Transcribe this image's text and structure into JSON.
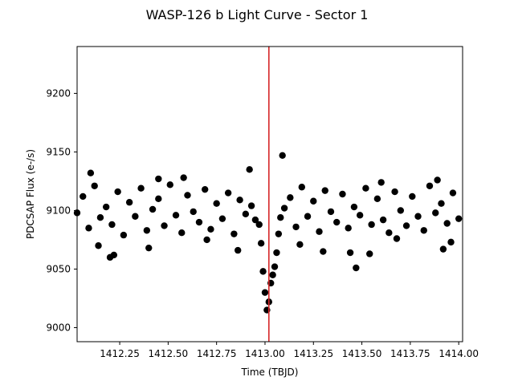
{
  "chart_data": {
    "type": "scatter",
    "title": "WASP-126 b Light Curve - Sector 1",
    "xlabel": "Time (TBJD)",
    "ylabel": "PDCSAP Flux (e-/s)",
    "xlim": [
      1412.03,
      1414.02
    ],
    "ylim": [
      8988,
      9240
    ],
    "x_ticks": [
      1412.25,
      1412.5,
      1412.75,
      1413.0,
      1413.25,
      1413.5,
      1413.75,
      1414.0
    ],
    "x_tick_labels": [
      "1412.25",
      "1412.50",
      "1412.75",
      "1413.00",
      "1413.25",
      "1413.50",
      "1413.75",
      "1414.00"
    ],
    "y_ticks": [
      9000,
      9050,
      9100,
      9150,
      9200
    ],
    "y_tick_labels": [
      "9000",
      "9050",
      "9100",
      "9150",
      "9200"
    ],
    "grid": false,
    "marker_color": "#000000",
    "vline": {
      "x": 1413.02,
      "color": "#d62728"
    },
    "points": {
      "x": [
        1412.03,
        1412.06,
        1412.09,
        1412.12,
        1412.15,
        1412.18,
        1412.21,
        1412.24,
        1412.27,
        1412.3,
        1412.33,
        1412.36,
        1412.39,
        1412.42,
        1412.45,
        1412.48,
        1412.51,
        1412.54,
        1412.57,
        1412.6,
        1412.63,
        1412.66,
        1412.69,
        1412.72,
        1412.75,
        1412.78,
        1412.81,
        1412.84,
        1412.87,
        1412.9,
        1412.93,
        1412.95,
        1412.97,
        1412.98,
        1412.99,
        1413.0,
        1413.01,
        1413.02,
        1413.03,
        1413.04,
        1413.05,
        1413.06,
        1413.07,
        1413.08,
        1413.1,
        1413.13,
        1413.16,
        1413.19,
        1413.22,
        1413.25,
        1413.28,
        1413.31,
        1413.34,
        1413.37,
        1413.4,
        1413.43,
        1413.46,
        1413.49,
        1413.52,
        1413.55,
        1413.58,
        1413.61,
        1413.64,
        1413.67,
        1413.7,
        1413.73,
        1413.76,
        1413.79,
        1413.82,
        1413.85,
        1413.88,
        1413.91,
        1413.94,
        1413.97,
        1414.0,
        1412.1,
        1412.22,
        1412.4,
        1412.58,
        1412.86,
        1413.09,
        1413.3,
        1413.47,
        1413.54,
        1413.89,
        1413.96,
        1412.14,
        1412.45,
        1412.92,
        1413.18,
        1413.44,
        1413.68,
        1413.92,
        1412.2,
        1412.7,
        1413.6
      ],
      "y": [
        9098,
        9112,
        9085,
        9121,
        9094,
        9103,
        9088,
        9116,
        9079,
        9107,
        9095,
        9119,
        9083,
        9101,
        9110,
        9087,
        9122,
        9096,
        9081,
        9113,
        9099,
        9090,
        9118,
        9084,
        9106,
        9093,
        9115,
        9080,
        9109,
        9097,
        9104,
        9092,
        9088,
        9072,
        9048,
        9030,
        9015,
        9022,
        9038,
        9045,
        9052,
        9064,
        9080,
        9094,
        9102,
        9111,
        9086,
        9120,
        9095,
        9108,
        9082,
        9117,
        9099,
        9090,
        9114,
        9085,
        9103,
        9096,
        9119,
        9088,
        9110,
        9092,
        9081,
        9116,
        9100,
        9087,
        9112,
        9095,
        9083,
        9121,
        9098,
        9106,
        9089,
        9115,
        9093,
        9132,
        9062,
        9068,
        9128,
        9066,
        9147,
        9065,
        9051,
        9063,
        9126,
        9073,
        9070,
        9127,
        9135,
        9071,
        9064,
        9076,
        9067,
        9060,
        9075,
        9124
      ]
    }
  }
}
